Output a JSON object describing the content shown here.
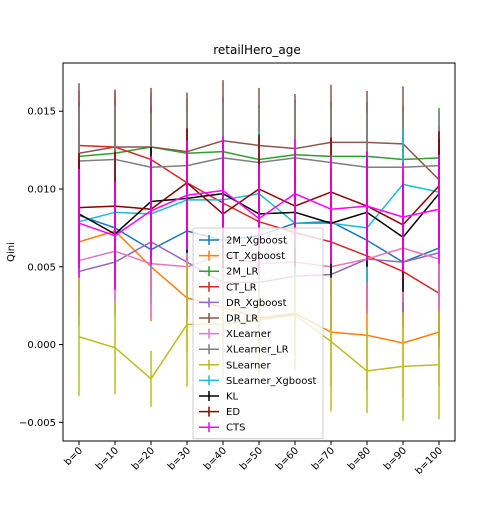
{
  "chart_data": {
    "type": "line",
    "title": "retailHero_age",
    "xlabel": "",
    "ylabel": "Qini",
    "categories": [
      "b=0",
      "b=10",
      "b=20",
      "b=30",
      "b=40",
      "b=50",
      "b=60",
      "b=70",
      "b=80",
      "b=90",
      "b=100"
    ],
    "ylim": [
      -0.0062,
      0.0181
    ],
    "yticks": [
      -0.005,
      0.0,
      0.005,
      0.01,
      0.015
    ],
    "ytick_labels": [
      "−0.005",
      "0.000",
      "0.005",
      "0.010",
      "0.015"
    ],
    "grid": false,
    "legend_position": "lower-center",
    "error_bars": true,
    "series": [
      {
        "name": "2M_Xgboost",
        "color": "#1f77b4",
        "values": [
          0.0083,
          0.0075,
          0.0061,
          0.0073,
          0.0067,
          0.007,
          0.0078,
          0.0079,
          0.0067,
          0.0053,
          0.0062
        ],
        "errors": [
          0.0035,
          0.0035,
          0.0035,
          0.0035,
          0.0035,
          0.0035,
          0.0035,
          0.0035,
          0.0035,
          0.0035,
          0.0035
        ]
      },
      {
        "name": "CT_Xgboost",
        "color": "#ff7f0e",
        "values": [
          0.0066,
          0.0073,
          0.005,
          0.003,
          0.0024,
          0.0017,
          0.002,
          0.0008,
          0.0006,
          0.0001,
          0.0008
        ],
        "errors": [
          0.0035,
          0.0035,
          0.0035,
          0.0035,
          0.0035,
          0.0035,
          0.0035,
          0.0035,
          0.0035,
          0.0035,
          0.0035
        ]
      },
      {
        "name": "2M_LR",
        "color": "#2ca02c",
        "values": [
          0.0121,
          0.0123,
          0.0127,
          0.0123,
          0.0124,
          0.0119,
          0.0122,
          0.0121,
          0.0121,
          0.0119,
          0.012
        ],
        "errors": [
          0.0035,
          0.0035,
          0.0035,
          0.0035,
          0.0035,
          0.0035,
          0.0035,
          0.0035,
          0.0035,
          0.0035,
          0.0032
        ]
      },
      {
        "name": "CT_LR",
        "color": "#d62728",
        "values": [
          0.0128,
          0.0127,
          0.0119,
          0.0104,
          0.0091,
          0.0079,
          0.0072,
          0.0066,
          0.0057,
          0.0047,
          0.0033
        ],
        "errors": [
          0.0035,
          0.0035,
          0.0035,
          0.0035,
          0.0035,
          0.0035,
          0.0035,
          0.0035,
          0.0035,
          0.0035,
          0.0035
        ]
      },
      {
        "name": "DR_Xgboost",
        "color": "#9467bd",
        "values": [
          0.0047,
          0.0053,
          0.0066,
          0.0053,
          0.004,
          0.004,
          0.0044,
          0.0045,
          0.0055,
          0.0053,
          0.0059
        ],
        "errors": [
          0.0035,
          0.0035,
          0.0035,
          0.0035,
          0.0035,
          0.0035,
          0.0035,
          0.0035,
          0.0035,
          0.0035,
          0.0035
        ]
      },
      {
        "name": "DR_LR",
        "color": "#8c564b",
        "values": [
          0.0123,
          0.0127,
          0.0127,
          0.0124,
          0.0131,
          0.0128,
          0.0126,
          0.013,
          0.013,
          0.0129,
          0.0106
        ],
        "errors": [
          0.0045,
          0.0037,
          0.0038,
          0.0038,
          0.0039,
          0.0037,
          0.0035,
          0.0037,
          0.0033,
          0.0037,
          0.0035
        ]
      },
      {
        "name": "XLearner",
        "color": "#e377c2",
        "values": [
          0.0054,
          0.006,
          0.0052,
          0.005,
          0.0058,
          0.0052,
          0.0053,
          0.005,
          0.0055,
          0.0062,
          0.0055
        ],
        "errors": [
          0.0035,
          0.0035,
          0.0035,
          0.0035,
          0.0035,
          0.0035,
          0.0035,
          0.0035,
          0.0035,
          0.0035,
          0.0035
        ]
      },
      {
        "name": "XLearner_LR",
        "color": "#7f7f7f",
        "values": [
          0.0118,
          0.0119,
          0.0114,
          0.0115,
          0.012,
          0.0117,
          0.012,
          0.0117,
          0.0114,
          0.0114,
          0.0115
        ],
        "errors": [
          0.0035,
          0.0035,
          0.0035,
          0.0035,
          0.0035,
          0.0035,
          0.0035,
          0.0035,
          0.0035,
          0.0035,
          0.0035
        ]
      },
      {
        "name": "SLearner",
        "color": "#bcbd22",
        "values": [
          0.0005,
          -0.0002,
          -0.0022,
          0.0013,
          0.0013,
          0.0016,
          0.0019,
          0.0002,
          -0.0017,
          -0.0014,
          -0.0013
        ],
        "errors": [
          0.0038,
          0.003,
          0.0018,
          0.004,
          0.0035,
          0.0035,
          0.0035,
          0.0045,
          0.0027,
          0.0035,
          0.0035
        ]
      },
      {
        "name": "SLearner_Xgboost",
        "color": "#17becf",
        "values": [
          0.0079,
          0.0085,
          0.0084,
          0.0093,
          0.0093,
          0.0097,
          0.0078,
          0.0078,
          0.0075,
          0.0103,
          0.0098
        ],
        "errors": [
          0.0035,
          0.0035,
          0.0035,
          0.0035,
          0.0035,
          0.004,
          0.0035,
          0.0035,
          0.0035,
          0.0035,
          0.0035
        ]
      },
      {
        "name": "KL",
        "color": "#000000",
        "values": [
          0.0084,
          0.0071,
          0.0092,
          0.0094,
          0.0097,
          0.0084,
          0.0085,
          0.0078,
          0.0085,
          0.0069,
          0.0097
        ],
        "errors": [
          0.0035,
          0.0035,
          0.0035,
          0.0035,
          0.0035,
          0.0035,
          0.0035,
          0.0035,
          0.0035,
          0.0035,
          0.0035
        ]
      },
      {
        "name": "ED",
        "color": "#8b0000",
        "values": [
          0.0088,
          0.0089,
          0.0087,
          0.0104,
          0.0084,
          0.01,
          0.0089,
          0.0098,
          0.0089,
          0.0077,
          0.0102
        ],
        "errors": [
          0.0035,
          0.0035,
          0.0035,
          0.0035,
          0.0035,
          0.0035,
          0.0035,
          0.0035,
          0.0035,
          0.0035,
          0.0035
        ]
      },
      {
        "name": "CTS",
        "color": "#ff00ff",
        "values": [
          0.0078,
          0.007,
          0.0086,
          0.0096,
          0.0099,
          0.0081,
          0.0097,
          0.0087,
          0.0089,
          0.0082,
          0.0087
        ],
        "errors": [
          0.0035,
          0.0035,
          0.0035,
          0.0035,
          0.0035,
          0.0035,
          0.0035,
          0.0035,
          0.0035,
          0.0035,
          0.0035
        ]
      }
    ]
  }
}
